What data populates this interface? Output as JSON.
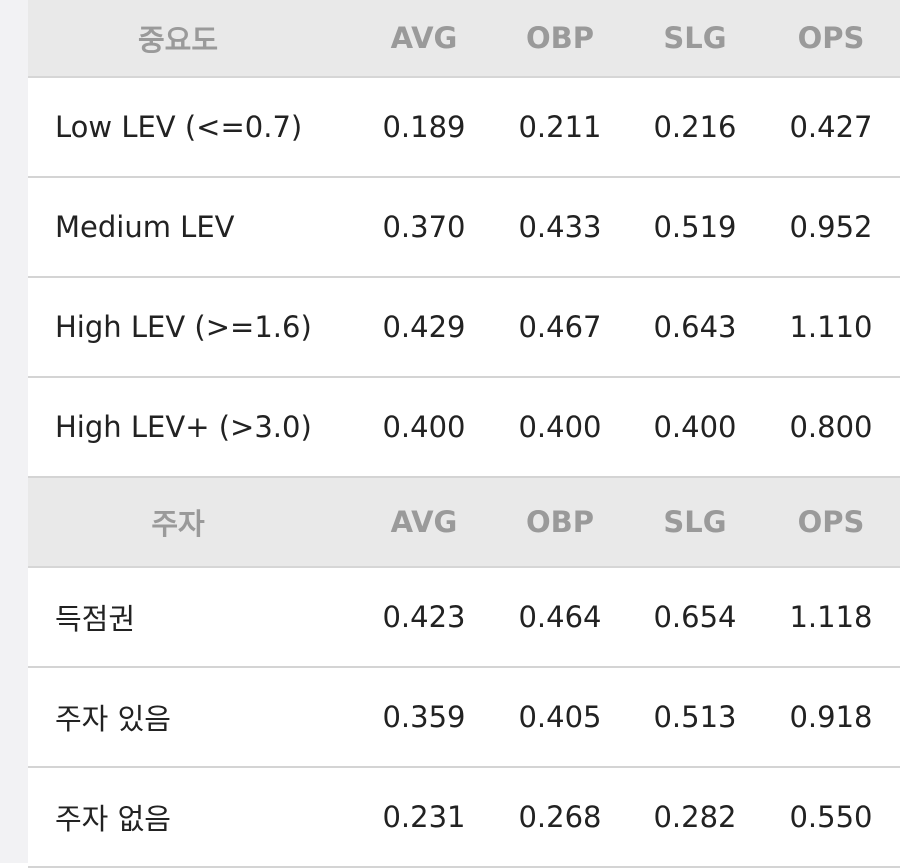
{
  "sections": [
    {
      "header": [
        "중요도",
        "AVG",
        "OBP",
        "SLG",
        "OPS"
      ],
      "rows": [
        [
          "Low LEV (<=0.7)",
          "0.189",
          "0.211",
          "0.216",
          "0.427"
        ],
        [
          "Medium LEV",
          "0.370",
          "0.433",
          "0.519",
          "0.952"
        ],
        [
          "High LEV (>=1.6)",
          "0.429",
          "0.467",
          "0.643",
          "1.110"
        ],
        [
          "High LEV+ (>3.0)",
          "0.400",
          "0.400",
          "0.400",
          "0.800"
        ]
      ]
    },
    {
      "header": [
        "주자",
        "AVG",
        "OBP",
        "SLG",
        "OPS"
      ],
      "rows": [
        [
          "득점권",
          "0.423",
          "0.464",
          "0.654",
          "1.118"
        ],
        [
          "주자 있음",
          "0.359",
          "0.405",
          "0.513",
          "0.918"
        ],
        [
          "주자 없음",
          "0.231",
          "0.268",
          "0.282",
          "0.550"
        ]
      ]
    }
  ]
}
